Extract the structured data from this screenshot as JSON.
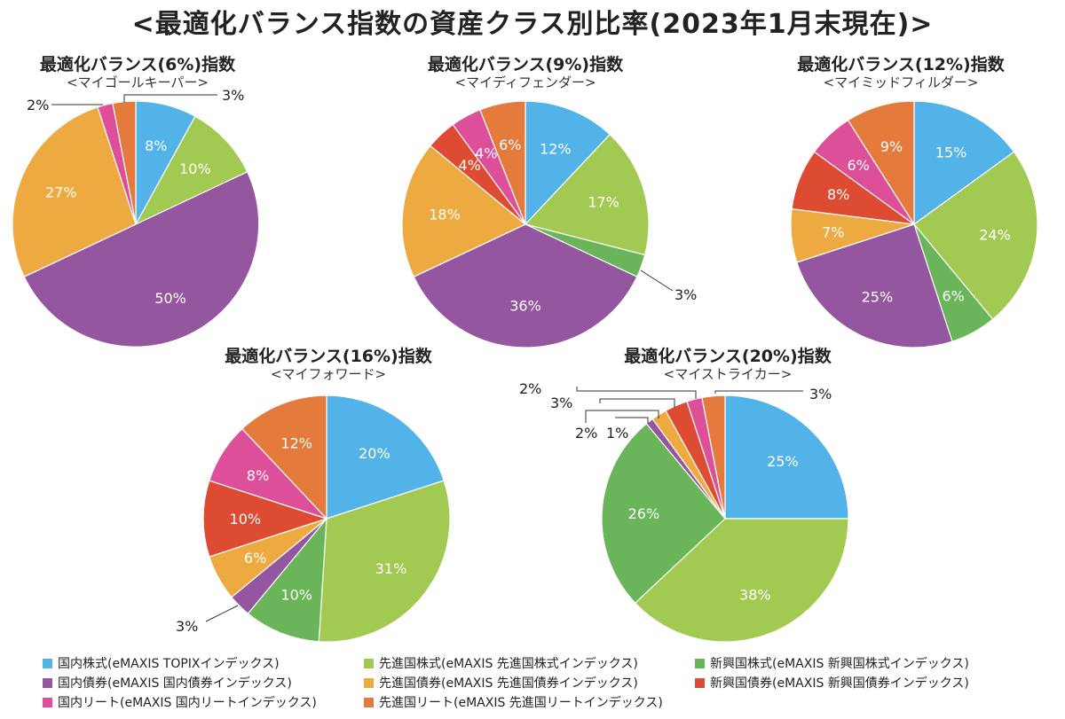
{
  "page_title": "<最適化バランス指数の資産クラス別比率(2023年1月末現在)>",
  "colors": {
    "domestic_stock": "#52b3e8",
    "developed_stock": "#a2c951",
    "emerging_stock": "#6ab55a",
    "domestic_bond": "#94569f",
    "developed_bond": "#edaa41",
    "emerging_bond": "#dd4b32",
    "domestic_reit": "#dd4f98",
    "developed_reit": "#e47a3b"
  },
  "legend": [
    {
      "key": "domestic_stock",
      "label": "国内株式(eMAXIS TOPIXインデックス)"
    },
    {
      "key": "developed_stock",
      "label": "先進国株式(eMAXIS 先進国株式インデックス)"
    },
    {
      "key": "emerging_stock",
      "label": "新興国株式(eMAXIS 新興国株式インデックス)"
    },
    {
      "key": "domestic_bond",
      "label": "国内債券(eMAXIS 国内債券インデックス)"
    },
    {
      "key": "developed_bond",
      "label": "先進国債券(eMAXIS 先進国債券インデックス)"
    },
    {
      "key": "emerging_bond",
      "label": "新興国債券(eMAXIS 新興国債券インデックス)"
    },
    {
      "key": "domestic_reit",
      "label": "国内リート(eMAXIS 国内リートインデックス)"
    },
    {
      "key": "developed_reit",
      "label": "先進国リート(eMAXIS 先進国リートインデックス)"
    }
  ],
  "chart_data": [
    {
      "type": "pie",
      "title": "最適化バランス(6%)指数",
      "subtitle": "<マイゴールキーパー>",
      "slices": [
        {
          "key": "domestic_stock",
          "value": 8,
          "label": "8%"
        },
        {
          "key": "developed_stock",
          "value": 10,
          "label": "10%"
        },
        {
          "key": "domestic_bond",
          "value": 50,
          "label": "50%"
        },
        {
          "key": "developed_bond",
          "value": 27,
          "label": "27%"
        },
        {
          "key": "domestic_reit",
          "value": 2,
          "label": "2%"
        },
        {
          "key": "developed_reit",
          "value": 3,
          "label": "3%"
        }
      ]
    },
    {
      "type": "pie",
      "title": "最適化バランス(9%)指数",
      "subtitle": "<マイディフェンダー>",
      "slices": [
        {
          "key": "domestic_stock",
          "value": 12,
          "label": "12%"
        },
        {
          "key": "developed_stock",
          "value": 17,
          "label": "17%"
        },
        {
          "key": "emerging_stock",
          "value": 3,
          "label": "3%"
        },
        {
          "key": "domestic_bond",
          "value": 36,
          "label": "36%"
        },
        {
          "key": "developed_bond",
          "value": 18,
          "label": "18%"
        },
        {
          "key": "emerging_bond",
          "value": 4,
          "label": "4%"
        },
        {
          "key": "domestic_reit",
          "value": 4,
          "label": "4%"
        },
        {
          "key": "developed_reit",
          "value": 6,
          "label": "6%"
        }
      ]
    },
    {
      "type": "pie",
      "title": "最適化バランス(12%)指数",
      "subtitle": "<マイミッドフィルダー>",
      "slices": [
        {
          "key": "domestic_stock",
          "value": 15,
          "label": "15%"
        },
        {
          "key": "developed_stock",
          "value": 24,
          "label": "24%"
        },
        {
          "key": "emerging_stock",
          "value": 6,
          "label": "6%"
        },
        {
          "key": "domestic_bond",
          "value": 25,
          "label": "25%"
        },
        {
          "key": "developed_bond",
          "value": 7,
          "label": "7%"
        },
        {
          "key": "emerging_bond",
          "value": 8,
          "label": "8%"
        },
        {
          "key": "domestic_reit",
          "value": 6,
          "label": "6%"
        },
        {
          "key": "developed_reit",
          "value": 9,
          "label": "9%"
        }
      ]
    },
    {
      "type": "pie",
      "title": "最適化バランス(16%)指数",
      "subtitle": "<マイフォワード>",
      "slices": [
        {
          "key": "domestic_stock",
          "value": 20,
          "label": "20%"
        },
        {
          "key": "developed_stock",
          "value": 31,
          "label": "31%"
        },
        {
          "key": "emerging_stock",
          "value": 10,
          "label": "10%"
        },
        {
          "key": "domestic_bond",
          "value": 3,
          "label": "3%"
        },
        {
          "key": "developed_bond",
          "value": 6,
          "label": "6%"
        },
        {
          "key": "emerging_bond",
          "value": 10,
          "label": "10%"
        },
        {
          "key": "domestic_reit",
          "value": 8,
          "label": "8%"
        },
        {
          "key": "developed_reit",
          "value": 12,
          "label": "12%"
        }
      ]
    },
    {
      "type": "pie",
      "title": "最適化バランス(20%)指数",
      "subtitle": "<マイストライカー>",
      "slices": [
        {
          "key": "domestic_stock",
          "value": 25,
          "label": "25%"
        },
        {
          "key": "developed_stock",
          "value": 38,
          "label": "38%"
        },
        {
          "key": "emerging_stock",
          "value": 26,
          "label": "26%"
        },
        {
          "key": "domestic_bond",
          "value": 1,
          "label": "1%"
        },
        {
          "key": "developed_bond",
          "value": 2,
          "label": "2%"
        },
        {
          "key": "emerging_bond",
          "value": 3,
          "label": "3%"
        },
        {
          "key": "domestic_reit",
          "value": 2,
          "label": "2%"
        },
        {
          "key": "developed_reit",
          "value": 3,
          "label": "3%"
        }
      ]
    }
  ]
}
